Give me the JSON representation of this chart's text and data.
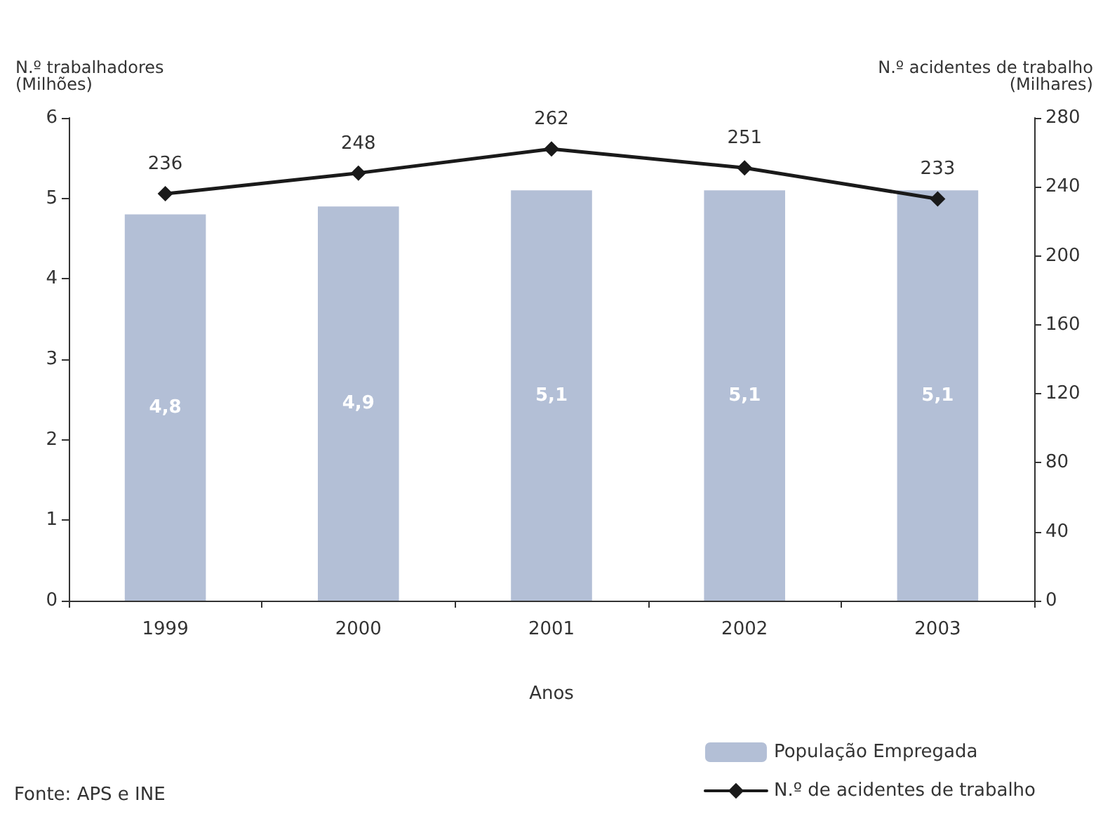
{
  "chart_data": {
    "type": "bar",
    "xlabel": "Anos",
    "ylabel": "N.º trabalhadores\n(Milhões)",
    "y2label": "N.º acidentes de trabalho\n(Milhares)",
    "categories": [
      "1999",
      "2000",
      "2001",
      "2002",
      "2003"
    ],
    "series": [
      {
        "name": "População Empregada",
        "color": "#b3bfd6",
        "values": [
          4.8,
          4.9,
          5.1,
          5.1,
          5.1
        ],
        "value_labels": [
          "4,8",
          "4,9",
          "5,1",
          "5,1",
          "5,1"
        ]
      },
      {
        "name": "N.º de acidentes de trabalho",
        "type": "line",
        "axis": "y2",
        "color": "#1a1a1a",
        "marker": "diamond",
        "line_style": "solid",
        "values": [
          236,
          248,
          262,
          251,
          233
        ],
        "value_labels": [
          "236",
          "248",
          "262",
          "251",
          "233"
        ]
      }
    ],
    "ylim": [
      0,
      6
    ],
    "yticks": [
      0,
      1,
      2,
      3,
      4,
      5,
      6
    ],
    "y2lim": [
      0,
      280
    ],
    "y2ticks": [
      0,
      40,
      80,
      120,
      160,
      200,
      240,
      280
    ],
    "grid": false,
    "legend": "bottom right",
    "annotations": [
      "Fonte: APS e INE"
    ]
  }
}
